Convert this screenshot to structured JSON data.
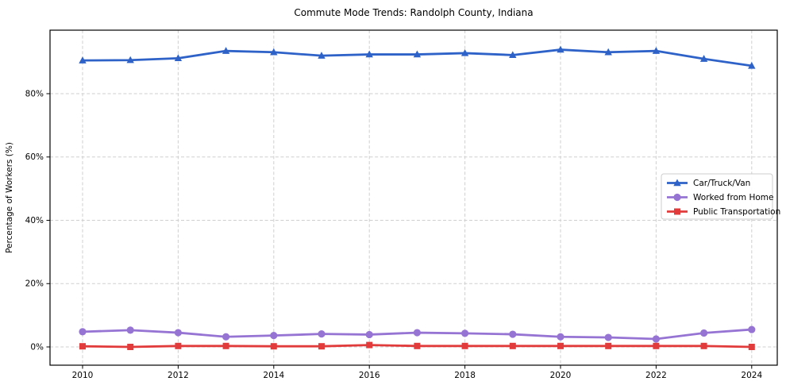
{
  "title": "Commute Mode Trends: Randolph County, Indiana",
  "chart_data": {
    "type": "line",
    "title": "Commute Mode Trends: Randolph County, Indiana",
    "xlabel": "",
    "ylabel": "Percentage of Workers (%)",
    "x": [
      2010,
      2011,
      2012,
      2013,
      2014,
      2015,
      2016,
      2017,
      2018,
      2019,
      2020,
      2021,
      2022,
      2023,
      2024
    ],
    "series": [
      {
        "name": "Car/Truck/Van",
        "color": "#2e62c8",
        "marker": "triangle",
        "values": [
          90.5,
          90.6,
          91.2,
          93.5,
          93.1,
          92.0,
          92.4,
          92.4,
          92.8,
          92.2,
          93.9,
          93.1,
          93.5,
          91.0,
          88.8
        ]
      },
      {
        "name": "Worked from Home",
        "color": "#9674d4",
        "marker": "circle",
        "values": [
          4.8,
          5.3,
          4.5,
          3.2,
          3.6,
          4.1,
          3.9,
          4.5,
          4.3,
          4.0,
          3.2,
          3.0,
          2.5,
          4.4,
          5.5
        ]
      },
      {
        "name": "Public Transportation",
        "color": "#e23b3c",
        "marker": "square",
        "values": [
          0.2,
          0.0,
          0.3,
          0.3,
          0.2,
          0.2,
          0.6,
          0.3,
          0.3,
          0.3,
          0.3,
          0.3,
          0.3,
          0.3,
          0.0
        ]
      }
    ],
    "x_ticks": {
      "values": [
        2010,
        2012,
        2014,
        2016,
        2018,
        2020,
        2022,
        2024
      ],
      "labels": [
        "2010",
        "2012",
        "2014",
        "2016",
        "2018",
        "2020",
        "2022",
        "2024"
      ]
    },
    "y_ticks": {
      "values": [
        0,
        20,
        40,
        60,
        80
      ],
      "labels": [
        "0%",
        "20%",
        "40%",
        "60%",
        "80%"
      ]
    },
    "xlim": [
      2009.3,
      2024.55
    ],
    "ylim": [
      -5.8,
      100.1
    ],
    "grid": true,
    "grid_color": "#cfcfcf",
    "axis_color": "#000000",
    "background": "#ffffff",
    "legend_position": "center-right",
    "legend_border_color": "#cccccc",
    "legend_background": "#ffffff"
  }
}
